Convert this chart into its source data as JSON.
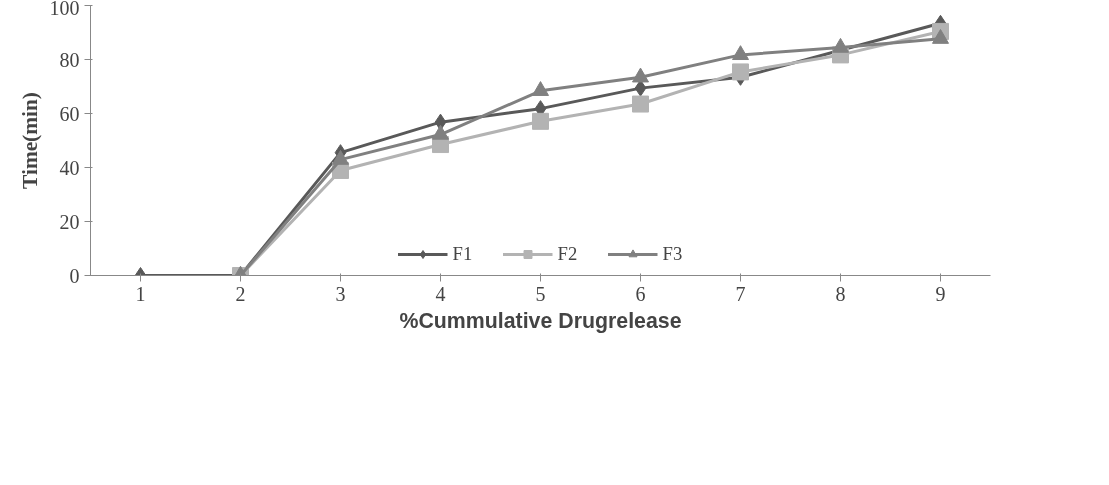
{
  "chart_data": {
    "type": "line",
    "xlabel": "%Cummulative Drugrelease",
    "ylabel": "Time(min)",
    "categories": [
      "1",
      "2",
      "3",
      "4",
      "5",
      "6",
      "7",
      "8",
      "9"
    ],
    "ylim": [
      0,
      100
    ],
    "yticks": [
      0,
      20,
      40,
      60,
      80,
      100
    ],
    "legend": "bottom",
    "series": [
      {
        "name": "F1",
        "color": "#595959",
        "marker": "diamond",
        "values": [
          0,
          0,
          45.5,
          56.8,
          61.8,
          69.4,
          73.4,
          83.4,
          93.4
        ]
      },
      {
        "name": "F2",
        "color": "#b3b3b3",
        "marker": "square",
        "values": [
          null,
          0,
          38.9,
          48.5,
          57.1,
          63.5,
          75.4,
          81.7,
          90.4
        ]
      },
      {
        "name": "F3",
        "color": "#808080",
        "marker": "triangle",
        "values": [
          null,
          0,
          42.9,
          52.2,
          68.4,
          73.4,
          81.7,
          84.4,
          87.7
        ]
      }
    ]
  }
}
